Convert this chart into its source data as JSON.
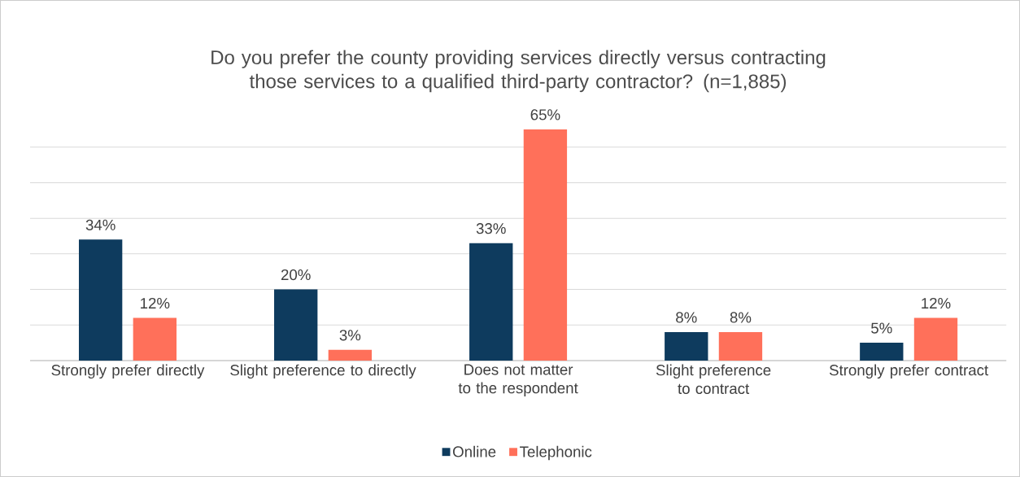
{
  "chart_data": {
    "type": "bar",
    "title": "Do you prefer the county providing services directly versus contracting those services to a qualified third-party contractor? (n=1,885)",
    "categories": [
      "Strongly prefer directly",
      "Slight preference to directly",
      "Does not matter to the respondent",
      "Slight preference to contract",
      "Strongly prefer contract"
    ],
    "series": [
      {
        "name": "Online",
        "color": "#0e3b5e",
        "values": [
          34,
          20,
          33,
          8,
          5
        ],
        "value_labels": [
          "34%",
          "20%",
          "33%",
          "8%",
          "5%"
        ]
      },
      {
        "name": "Telephonic",
        "color": "#ff705a",
        "values": [
          12,
          3,
          65,
          8,
          12
        ],
        "value_labels": [
          "12%",
          "3%",
          "65%",
          "8%",
          "12%"
        ]
      }
    ],
    "grid": "y",
    "legend": "bottom"
  }
}
